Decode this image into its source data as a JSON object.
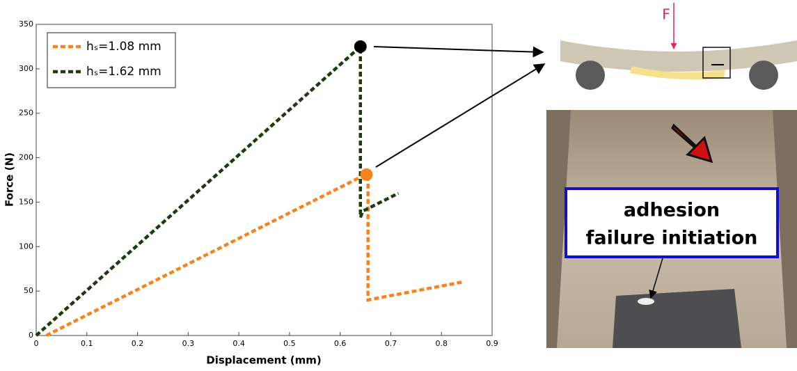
{
  "chart_data": {
    "type": "line",
    "xlabel": "Displacement (mm)",
    "ylabel": "Force (N)",
    "xlim": [
      0,
      0.9
    ],
    "ylim": [
      0,
      350
    ],
    "xticks": [
      0,
      0.1,
      0.2,
      0.3,
      0.4,
      0.5,
      0.6,
      0.7,
      0.8,
      0.9
    ],
    "yticks": [
      0,
      50,
      100,
      150,
      200,
      250,
      300,
      350
    ],
    "legend": "upper left",
    "series": [
      {
        "name": "hₛ=1.08 mm",
        "color": "#f5841f",
        "x": [
          0.02,
          0.65,
          0.655,
          0.655,
          0.84
        ],
        "values": [
          0,
          181,
          178,
          40,
          60
        ]
      },
      {
        "name": "hₛ=1.62 mm",
        "color": "#1e3a0f",
        "x": [
          0,
          0.64,
          0.64,
          0.645,
          0.715
        ],
        "values": [
          0,
          325,
          133,
          140,
          160
        ]
      }
    ],
    "points": [
      {
        "x": 0.64,
        "y": 325,
        "color": "#000000"
      },
      {
        "x": 0.652,
        "y": 181,
        "color": "#f5841f"
      }
    ]
  },
  "diagram": {
    "force_label": "F",
    "callout": [
      "adhesion",
      "failure initiation"
    ]
  }
}
